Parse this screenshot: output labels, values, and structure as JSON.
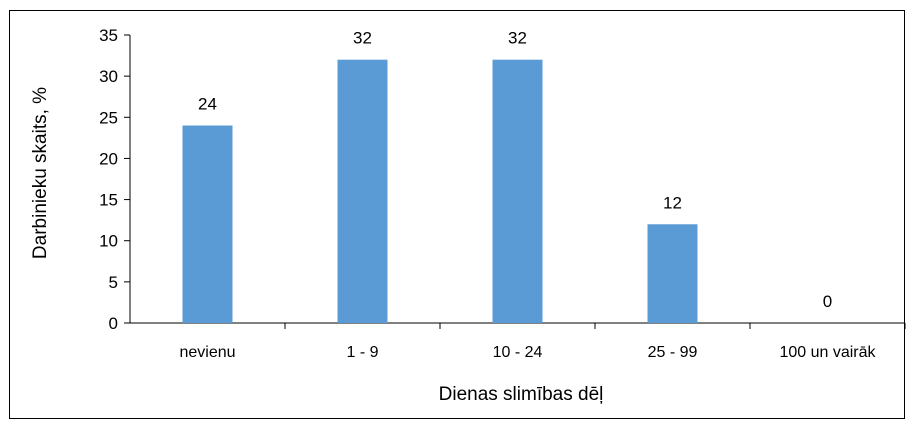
{
  "chart_data": {
    "type": "bar",
    "categories": [
      "nevienu",
      "1 - 9",
      "10 - 24",
      "25 - 99",
      "100 un vairāk"
    ],
    "values": [
      24,
      32,
      32,
      12,
      0
    ],
    "data_labels": [
      "24",
      "32",
      "32",
      "12",
      "0"
    ],
    "xlabel": "Dienas slimības dēļ",
    "ylabel": "Darbinieku skaits, %",
    "ylim": [
      0,
      35
    ],
    "yticks": [
      0,
      5,
      10,
      15,
      20,
      25,
      30,
      35
    ],
    "grid": false,
    "legend": "none",
    "bar_color": "#5B9BD5"
  }
}
